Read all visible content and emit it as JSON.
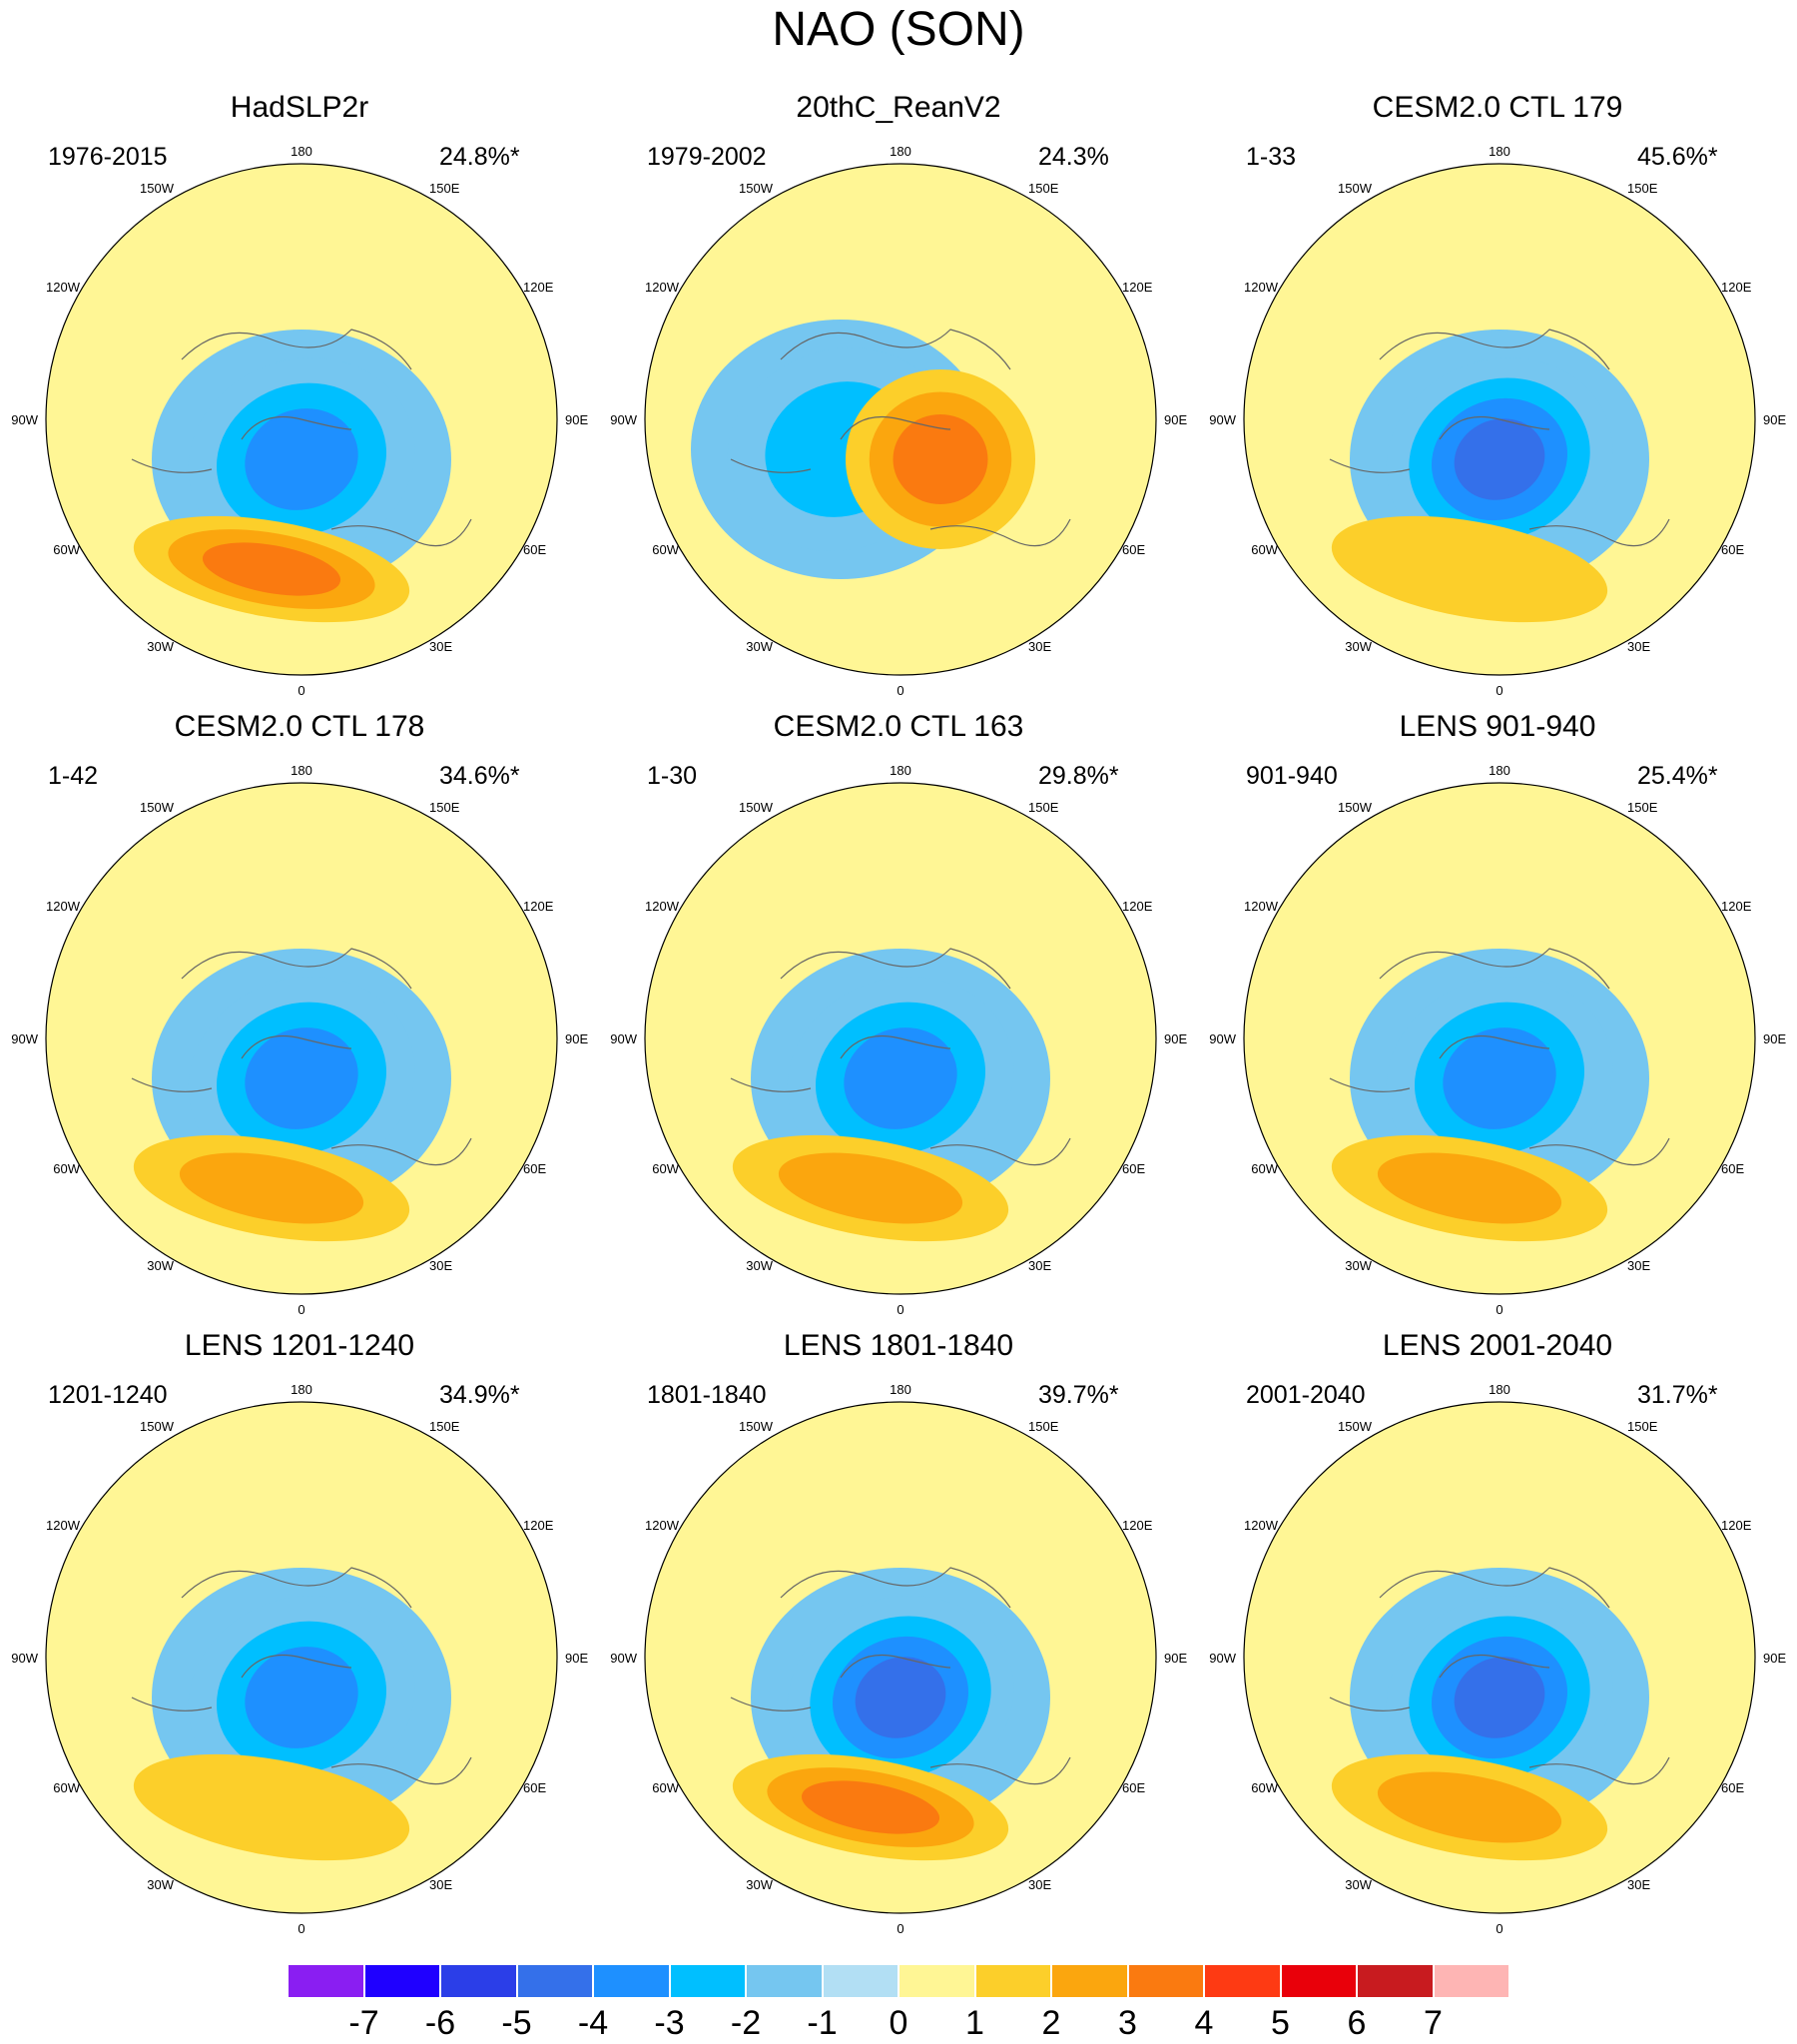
{
  "title": "NAO (SON)",
  "longitude_labels": {
    "lon_180": "180",
    "lon_150W": "150W",
    "lon_150E": "150E",
    "lon_120W": "120W",
    "lon_120E": "120E",
    "lon_90W": "90W",
    "lon_90E": "90E",
    "lon_60W": "60W",
    "lon_60E": "60E",
    "lon_30W": "30W",
    "lon_30E": "30E",
    "lon_0": "0"
  },
  "panels": [
    {
      "title": "HadSLP2r",
      "period": "1976-2015",
      "variance": "24.8%*",
      "pattern": {
        "low_center": "north",
        "low_peak": -3.5,
        "high_peak": 3.2
      }
    },
    {
      "title": "20thC_ReanV2",
      "period": "1979-2002",
      "variance": "24.3%",
      "pattern": {
        "low_center": "west",
        "low_peak": -2.5,
        "high_peak": 3.5
      }
    },
    {
      "title": "CESM2.0 CTL 179",
      "period": "1-33",
      "variance": "45.6%*",
      "pattern": {
        "low_center": "north",
        "low_peak": -4.8,
        "high_peak": 1.9
      }
    },
    {
      "title": "CESM2.0 CTL 178",
      "period": "1-42",
      "variance": "34.6%*",
      "pattern": {
        "low_center": "north",
        "low_peak": -3.4,
        "high_peak": 2.8
      }
    },
    {
      "title": "CESM2.0 CTL 163",
      "period": "1-30",
      "variance": "29.8%*",
      "pattern": {
        "low_center": "north",
        "low_peak": -3.0,
        "high_peak": 2.6
      }
    },
    {
      "title": "LENS 901-940",
      "period": "901-940",
      "variance": "25.4%*",
      "pattern": {
        "low_center": "north",
        "low_peak": -3.0,
        "high_peak": 2.7
      }
    },
    {
      "title": "LENS 1201-1240",
      "period": "1201-1240",
      "variance": "34.9%*",
      "pattern": {
        "low_center": "north",
        "low_peak": -3.8,
        "high_peak": 1.9
      }
    },
    {
      "title": "LENS 1801-1840",
      "period": "1801-1840",
      "variance": "39.7%*",
      "pattern": {
        "low_center": "north",
        "low_peak": -4.0,
        "high_peak": 3.3
      }
    },
    {
      "title": "LENS 2001-2040",
      "period": "2001-2040",
      "variance": "31.7%*",
      "pattern": {
        "low_center": "north",
        "low_peak": -4.0,
        "high_peak": 2.8
      }
    }
  ],
  "colorbar": {
    "ticks": [
      "-7",
      "-6",
      "-5",
      "-4",
      "-3",
      "-2",
      "-1",
      "0",
      "1",
      "2",
      "3",
      "4",
      "5",
      "6",
      "7"
    ],
    "colors": [
      "#8a1ef2",
      "#1f00ff",
      "#2b3ee8",
      "#3470ea",
      "#1e90ff",
      "#00bfff",
      "#75c6f0",
      "#b2dff4",
      "#fff695",
      "#fccf2a",
      "#fba60e",
      "#fa7a10",
      "#fe3a13",
      "#e9000a",
      "#c81b1f",
      "#feb5b4"
    ]
  }
}
